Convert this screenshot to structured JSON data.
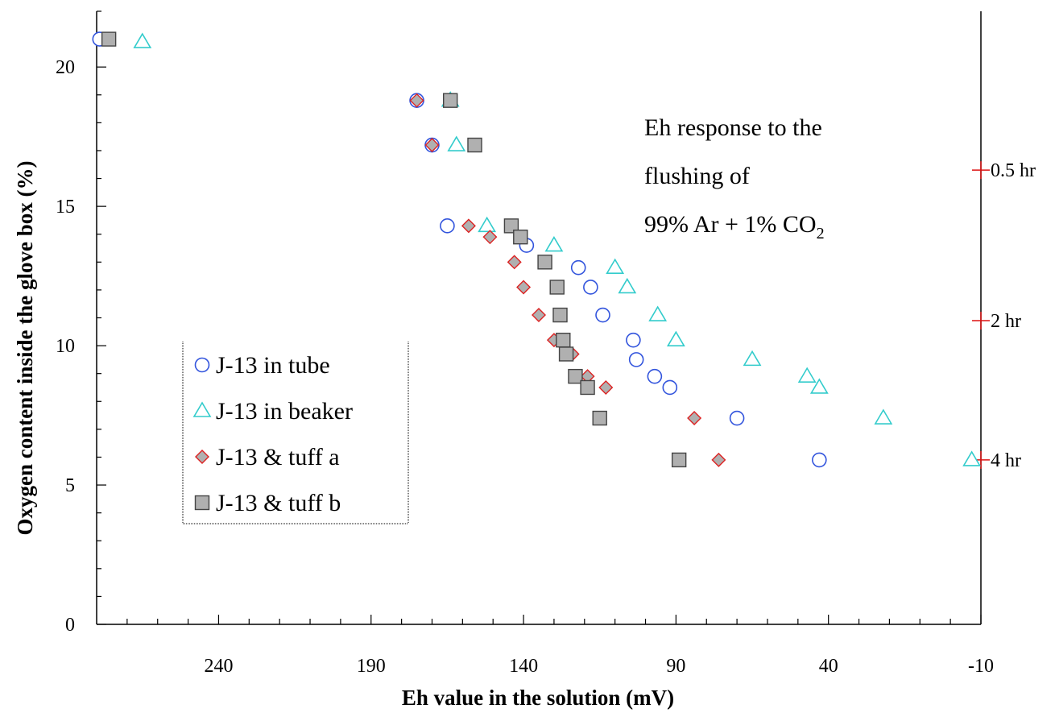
{
  "chart_data": {
    "type": "scatter",
    "title": "",
    "xlabel": "Eh value in the solution (mV)",
    "ylabel": "Oxygen content inside the glove box (%)",
    "xlim": [
      280,
      -10
    ],
    "ylim": [
      0,
      22
    ],
    "x_reversed": true,
    "x_ticks": [
      240,
      190,
      140,
      90,
      40,
      -10
    ],
    "x_tick_labels": [
      "240",
      "190",
      "140",
      "90",
      "40",
      "-10"
    ],
    "y_ticks": [
      0,
      5,
      10,
      15,
      20
    ],
    "y_tick_labels": [
      "0",
      "5",
      "10",
      "15",
      "20"
    ],
    "grid": false,
    "legend_position": "lower-left",
    "annotation": {
      "line1": "Eh response to the",
      "line2": "flushing of",
      "line3a": "99% Ar + 1% CO",
      "line3sub": "2"
    },
    "time_markers": [
      {
        "label": "0.5 hr",
        "y": 16.3
      },
      {
        "label": "2 hr",
        "y": 10.9
      },
      {
        "label": "4 hr",
        "y": 5.9
      }
    ],
    "series": [
      {
        "name": "J-13 in tube",
        "marker": "circle",
        "color": "#3355dd",
        "fill": "none",
        "points": [
          [
            279,
            21.0
          ],
          [
            175,
            18.8
          ],
          [
            170,
            17.2
          ],
          [
            165,
            14.3
          ],
          [
            139,
            13.6
          ],
          [
            122,
            12.8
          ],
          [
            118,
            12.1
          ],
          [
            114,
            11.1
          ],
          [
            104,
            10.2
          ],
          [
            103,
            9.5
          ],
          [
            97,
            8.9
          ],
          [
            92,
            8.5
          ],
          [
            70,
            7.4
          ],
          [
            43,
            5.9
          ]
        ]
      },
      {
        "name": "J-13 in beaker",
        "marker": "triangle",
        "color": "#33cccc",
        "fill": "none",
        "points": [
          [
            265,
            20.9
          ],
          [
            164,
            18.8
          ],
          [
            162,
            17.2
          ],
          [
            152,
            14.3
          ],
          [
            130,
            13.6
          ],
          [
            110,
            12.8
          ],
          [
            106,
            12.1
          ],
          [
            96,
            11.1
          ],
          [
            90,
            10.2
          ],
          [
            65,
            9.5
          ],
          [
            47,
            8.9
          ],
          [
            43,
            8.5
          ],
          [
            22,
            7.4
          ],
          [
            -7,
            5.9
          ]
        ]
      },
      {
        "name": "J-13 & tuff a",
        "marker": "diamond",
        "color": "#dd2222",
        "fill": "#b0b0b0",
        "points": [
          [
            175,
            18.8
          ],
          [
            170,
            17.2
          ],
          [
            158,
            14.3
          ],
          [
            151,
            13.9
          ],
          [
            143,
            13.0
          ],
          [
            140,
            12.1
          ],
          [
            135,
            11.1
          ],
          [
            130,
            10.2
          ],
          [
            124,
            9.7
          ],
          [
            119,
            8.9
          ],
          [
            113,
            8.5
          ],
          [
            84,
            7.4
          ],
          [
            76,
            5.9
          ]
        ]
      },
      {
        "name": "J-13 & tuff b",
        "marker": "square",
        "color": "#444444",
        "fill": "#b0b0b0",
        "points": [
          [
            276,
            21.0
          ],
          [
            164,
            18.8
          ],
          [
            156,
            17.2
          ],
          [
            144,
            14.3
          ],
          [
            141,
            13.9
          ],
          [
            133,
            13.0
          ],
          [
            129,
            12.1
          ],
          [
            128,
            11.1
          ],
          [
            127,
            10.2
          ],
          [
            126,
            9.7
          ],
          [
            123,
            8.9
          ],
          [
            119,
            8.5
          ],
          [
            115,
            7.4
          ],
          [
            89,
            5.9
          ]
        ]
      }
    ]
  }
}
